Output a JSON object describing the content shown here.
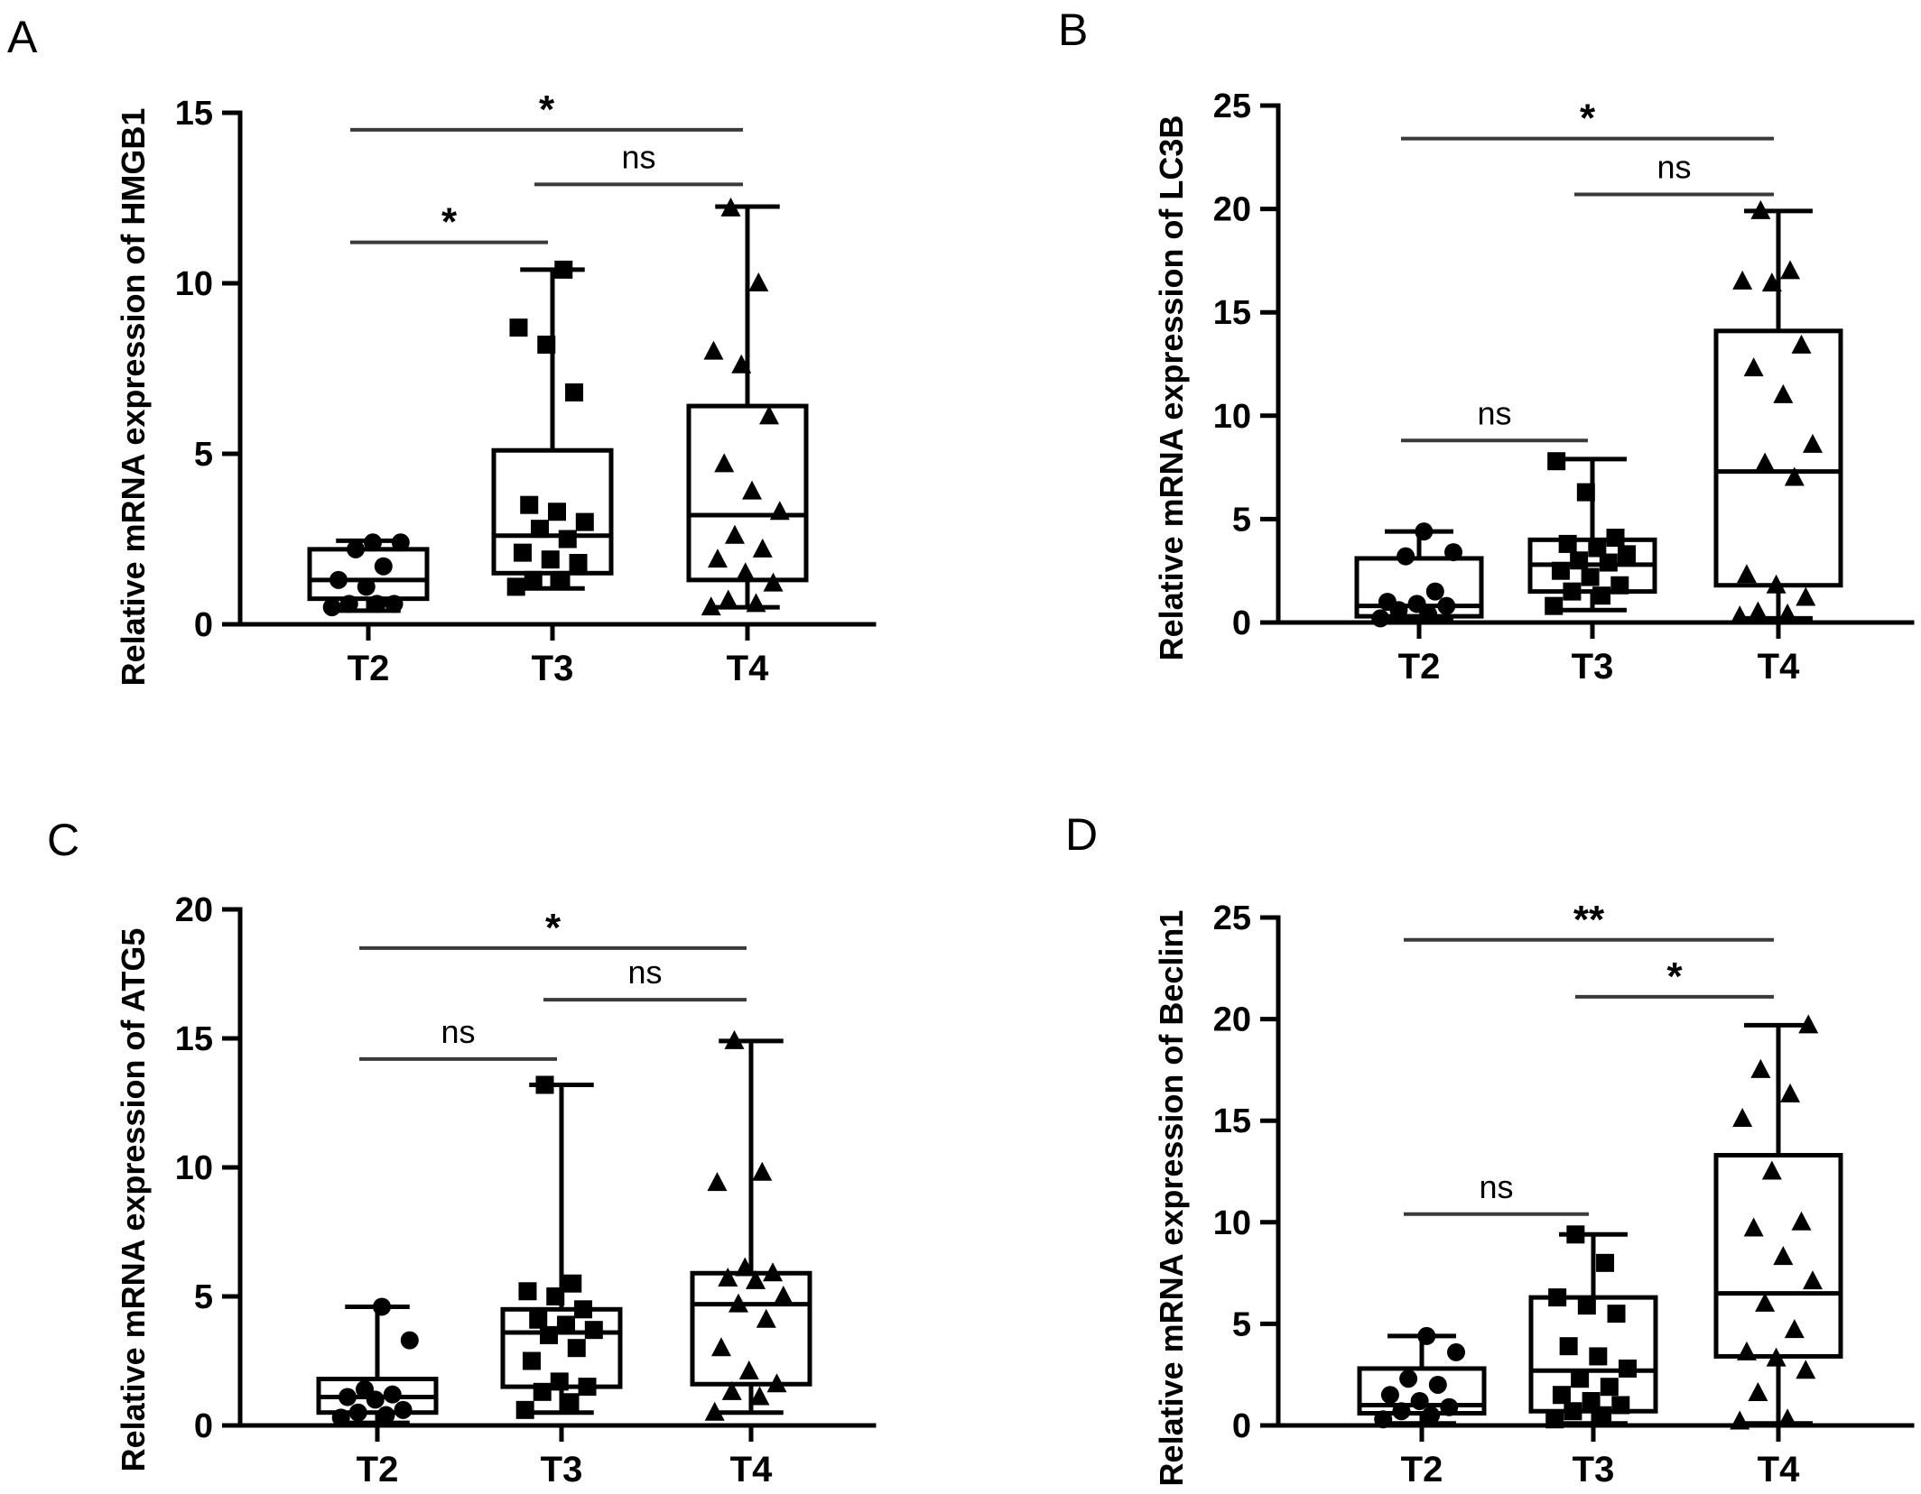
{
  "chart_data": [
    {
      "panel": "A",
      "type": "box",
      "ylabel": "Relative mRNA expression of HMGB1",
      "categories": [
        "T2",
        "T3",
        "T4"
      ],
      "ylim": [
        0,
        15
      ],
      "yticks": [
        0,
        5,
        10,
        15
      ],
      "boxes": [
        {
          "min": 0.4,
          "q1": 0.75,
          "median": 1.3,
          "q3": 2.2,
          "max": 2.45
        },
        {
          "min": 1.05,
          "q1": 1.5,
          "median": 2.6,
          "q3": 5.1,
          "max": 10.4
        },
        {
          "min": 0.5,
          "q1": 1.3,
          "median": 3.2,
          "q3": 6.4,
          "max": 12.25
        }
      ],
      "points": [
        [
          0.5,
          0.6,
          0.6,
          0.6,
          1.1,
          1.3,
          1.7,
          2.2,
          2.4,
          2.4
        ],
        [
          1.1,
          1.3,
          1.3,
          1.8,
          1.9,
          2.1,
          2.5,
          2.8,
          3.0,
          3.3,
          3.5,
          6.8,
          8.2,
          8.7,
          10.4
        ],
        [
          0.5,
          0.6,
          0.7,
          1.2,
          1.5,
          1.9,
          2.2,
          2.6,
          3.3,
          3.9,
          4.7,
          6.1,
          7.6,
          8.0,
          10.0,
          12.2
        ]
      ],
      "marker": [
        "circle",
        "square",
        "triangle"
      ],
      "comparisons": [
        {
          "from": "T2",
          "to": "T3",
          "label": "*",
          "y": 11.2
        },
        {
          "from": "T3",
          "to": "T4",
          "label": "ns",
          "y": 12.9
        },
        {
          "from": "T2",
          "to": "T4",
          "label": "*",
          "y": 14.5
        }
      ]
    },
    {
      "panel": "B",
      "type": "box",
      "ylabel": "Relative mRNA expression of LC3B",
      "categories": [
        "T2",
        "T3",
        "T4"
      ],
      "ylim": [
        0,
        25
      ],
      "yticks": [
        0,
        5,
        10,
        15,
        20,
        25
      ],
      "boxes": [
        {
          "min": 0.1,
          "q1": 0.3,
          "median": 0.8,
          "q3": 3.1,
          "max": 4.4
        },
        {
          "min": 0.6,
          "q1": 1.5,
          "median": 2.8,
          "q3": 4.0,
          "max": 7.9
        },
        {
          "min": 0.2,
          "q1": 1.8,
          "median": 7.3,
          "q3": 14.1,
          "max": 19.9
        }
      ],
      "points": [
        [
          0.2,
          0.4,
          0.6,
          0.8,
          0.9,
          1.0,
          1.5,
          3.2,
          3.4,
          4.4
        ],
        [
          0.8,
          1.3,
          1.5,
          1.8,
          2.2,
          2.5,
          2.9,
          3.0,
          3.3,
          3.6,
          3.8,
          4.1,
          6.3,
          7.8
        ],
        [
          0.3,
          0.4,
          0.5,
          1.2,
          1.8,
          2.3,
          7.0,
          7.7,
          8.6,
          11.0,
          12.3,
          13.4,
          16.4,
          16.5,
          17.0,
          19.9
        ]
      ],
      "marker": [
        "circle",
        "square",
        "triangle"
      ],
      "comparisons": [
        {
          "from": "T2",
          "to": "T3",
          "label": "ns",
          "y": 8.8
        },
        {
          "from": "T3",
          "to": "T4",
          "label": "ns",
          "y": 20.7
        },
        {
          "from": "T2",
          "to": "T4",
          "label": "*",
          "y": 23.4
        }
      ]
    },
    {
      "panel": "C",
      "type": "box",
      "ylabel": "Relative mRNA expression of ATG5",
      "categories": [
        "T2",
        "T3",
        "T4"
      ],
      "ylim": [
        0,
        20
      ],
      "yticks": [
        0,
        5,
        10,
        15,
        20
      ],
      "boxes": [
        {
          "min": 0.1,
          "q1": 0.5,
          "median": 1.1,
          "q3": 1.8,
          "max": 4.6
        },
        {
          "min": 0.5,
          "q1": 1.5,
          "median": 3.6,
          "q3": 4.5,
          "max": 13.2
        },
        {
          "min": 0.5,
          "q1": 1.6,
          "median": 4.7,
          "q3": 5.9,
          "max": 14.9
        }
      ],
      "points": [
        [
          0.3,
          0.4,
          0.5,
          0.6,
          1.0,
          1.1,
          1.2,
          1.4,
          3.3,
          4.6
        ],
        [
          0.6,
          0.9,
          1.3,
          1.5,
          1.7,
          2.5,
          3.0,
          3.5,
          3.7,
          3.9,
          4.1,
          4.5,
          5.0,
          5.2,
          5.5,
          13.2
        ],
        [
          0.5,
          1.1,
          1.3,
          1.6,
          2.1,
          3.0,
          4.1,
          4.7,
          5.0,
          5.6,
          5.7,
          5.9,
          6.1,
          9.4,
          9.8,
          14.9
        ]
      ],
      "marker": [
        "circle",
        "square",
        "triangle"
      ],
      "comparisons": [
        {
          "from": "T2",
          "to": "T3",
          "label": "ns",
          "y": 14.2
        },
        {
          "from": "T3",
          "to": "T4",
          "label": "ns",
          "y": 16.5
        },
        {
          "from": "T2",
          "to": "T4",
          "label": "*",
          "y": 18.5
        }
      ]
    },
    {
      "panel": "D",
      "type": "box",
      "ylabel": "Relative mRNA expression of Beclin1",
      "categories": [
        "T2",
        "T3",
        "T4"
      ],
      "ylim": [
        0,
        25
      ],
      "yticks": [
        0,
        5,
        10,
        15,
        20,
        25
      ],
      "boxes": [
        {
          "min": 0.1,
          "q1": 0.6,
          "median": 1.0,
          "q3": 2.8,
          "max": 4.4
        },
        {
          "min": 0.1,
          "q1": 0.7,
          "median": 2.7,
          "q3": 6.3,
          "max": 9.4
        },
        {
          "min": 0.1,
          "q1": 3.4,
          "median": 6.5,
          "q3": 13.3,
          "max": 19.7
        }
      ],
      "points": [
        [
          0.3,
          0.5,
          0.7,
          0.9,
          1.2,
          1.5,
          2.0,
          2.3,
          3.6,
          4.4
        ],
        [
          0.3,
          0.5,
          0.7,
          1.0,
          1.2,
          1.5,
          1.9,
          2.3,
          2.8,
          3.4,
          3.9,
          5.5,
          5.9,
          6.3,
          8.0,
          9.4
        ],
        [
          0.2,
          0.3,
          1.6,
          2.7,
          3.3,
          3.6,
          4.7,
          6.0,
          7.1,
          8.3,
          9.7,
          10.0,
          12.5,
          15.1,
          16.3,
          17.5,
          19.7
        ]
      ],
      "marker": [
        "circle",
        "square",
        "triangle"
      ],
      "comparisons": [
        {
          "from": "T2",
          "to": "T3",
          "label": "ns",
          "y": 10.4
        },
        {
          "from": "T3",
          "to": "T4",
          "label": "*",
          "y": 21.1
        },
        {
          "from": "T2",
          "to": "T4",
          "label": "**",
          "y": 23.9
        }
      ]
    }
  ]
}
